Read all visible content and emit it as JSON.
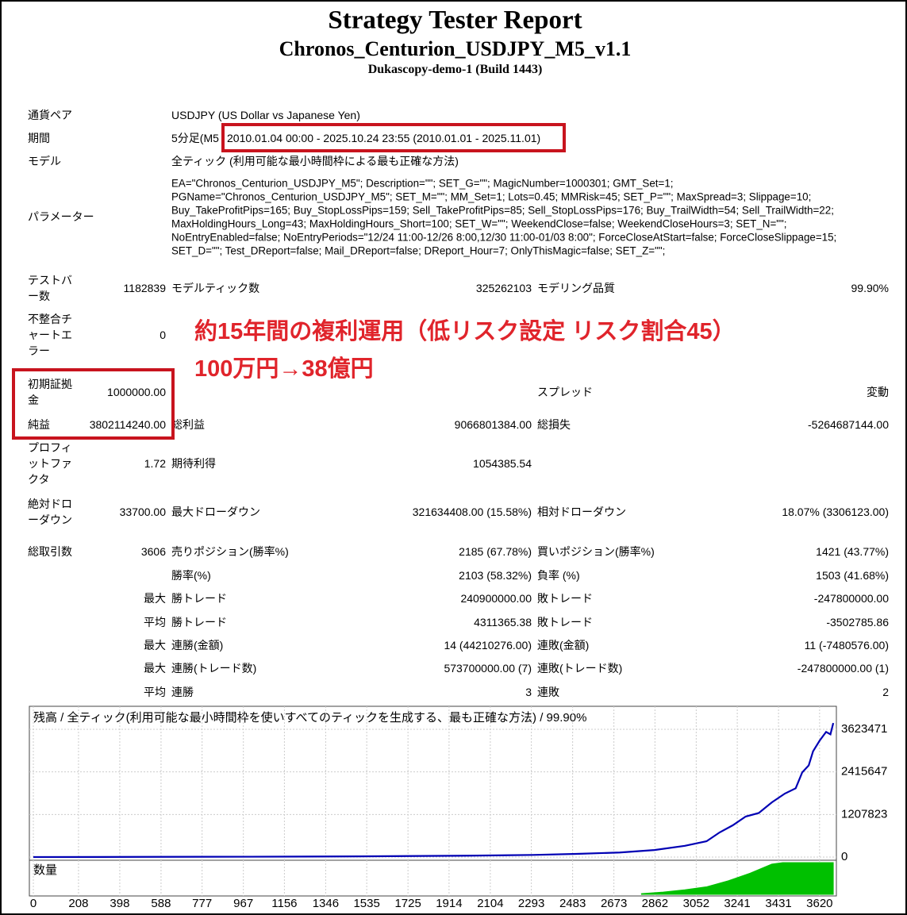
{
  "header": {
    "title": "Strategy Tester Report",
    "subtitle": "Chronos_Centurion_USDJPY_M5_v1.1",
    "server": "Dukascopy-demo-1 (Build 1443)"
  },
  "info": [
    {
      "label": "通貨ペア",
      "value": "USDJPY (US Dollar vs Japanese Yen)"
    },
    {
      "label": "期間",
      "value": "5分足(M5",
      "highlight": "2010.01.04 00:00 - 2025.10.24 23:55 (2010.01.01 - 2025.11.01)"
    },
    {
      "label": "モデル",
      "value": "全ティック (利用可能な最小時間枠による最も正確な方法)"
    },
    {
      "label": "パラメーター",
      "lines": [
        "EA=\"Chronos_Centurion_USDJPY_M5\"; Description=\"\"; SET_G=\"\"; MagicNumber=1000301; GMT_Set=1;",
        "PGName=\"Chronos_Centurion_USDJPY_M5\"; SET_M=\"\"; MM_Set=1; Lots=0.45; MMRisk=45; SET_P=\"\"; MaxSpread=3; Slippage=10;",
        "Buy_TakeProfitPips=165; Buy_StopLossPips=159; Sell_TakeProfitPips=85; Sell_StopLossPips=176; Buy_TrailWidth=54; Sell_TrailWidth=22;",
        "MaxHoldingHours_Long=43; MaxHoldingHours_Short=100; SET_W=\"\"; WeekendClose=false; WeekendCloseHours=3; SET_N=\"\";",
        "NoEntryEnabled=false; NoEntryPeriods=\"12/24 11:00-12/26 8:00,12/30 11:00-01/03 8:00\"; ForceCloseAtStart=false; ForceCloseSlippage=15;",
        "SET_D=\"\"; Test_DReport=false; Mail_DReport=false; DReport_Hour=7; OnlyThisMagic=false; SET_Z=\"\";"
      ]
    }
  ],
  "stats": [
    {
      "label": "テストバー数",
      "value": "1182839",
      "label2": "モデルティック数",
      "value2": "325262103",
      "label3": "モデリング品質",
      "value3": "99.90%"
    },
    {
      "label": "不整合チャートエラー",
      "value": "0"
    },
    {
      "label": "初期証拠金",
      "value": "1000000.00",
      "label3": "スプレッド",
      "value3": "変動"
    },
    {
      "label": "純益",
      "value": "3802114240.00",
      "label2": "総利益",
      "value2": "9066801384.00",
      "label3": "総損失",
      "value3": "-5264687144.00"
    },
    {
      "label": "プロフィットファクタ",
      "value": "1.72",
      "label2": "期待利得",
      "value2": "1054385.54"
    },
    {
      "label": "絶対ドローダウン",
      "value": "33700.00",
      "label2": "最大ドローダウン",
      "value2": "321634408.00 (15.58%)",
      "label3": "相対ドローダウン",
      "value3": "18.07% (3306123.00)"
    },
    {
      "label": "総取引数",
      "value": "3606",
      "label2": "売りポジション(勝率%)",
      "value2": "2185 (67.78%)",
      "label3": "買いポジション(勝率%)",
      "value3": "1421 (43.77%)"
    },
    {
      "label2": "勝率(%)",
      "value2": "2103 (58.32%)",
      "label3": "負率 (%)",
      "value3": "1503 (41.68%)"
    },
    {
      "value": "最大",
      "label2": "勝トレード",
      "value2": "240900000.00",
      "label3": "敗トレード",
      "value3": "-247800000.00"
    },
    {
      "value": "平均",
      "label2": "勝トレード",
      "value2": "4311365.38",
      "label3": "敗トレード",
      "value3": "-3502785.86"
    },
    {
      "value": "最大",
      "label2": "連勝(金額)",
      "value2": "14 (44210276.00)",
      "label3": "連敗(金額)",
      "value3": "11 (-7480576.00)"
    },
    {
      "value": "最大",
      "label2": "連勝(トレード数)",
      "value2": "573700000.00 (7)",
      "label3": "連敗(トレード数)",
      "value3": "-247800000.00 (1)"
    },
    {
      "value": "平均",
      "label2": "連勝",
      "value2": "3",
      "label3": "連敗",
      "value3": "2"
    }
  ],
  "annotation": [
    "約15年間の複利運用（低リスク設定 リスク割合45）",
    "100万円→38億円"
  ],
  "chart_data": [
    {
      "type": "line",
      "title": "残高 / 全ティック(利用可能な最小時間枠を使いすべてのティックを生成する、最も正確な方法) / 99.90%",
      "series": [
        {
          "color": "#0000b4",
          "x": [
            0,
            500,
            1000,
            1500,
            2000,
            2300,
            2500,
            2700,
            2860,
            3000,
            3100,
            3160,
            3220,
            3280,
            3340,
            3400,
            3460,
            3510,
            3540,
            3570,
            3590,
            3620,
            3650,
            3670,
            3683
          ],
          "values": [
            1000,
            5000,
            10000,
            20000,
            40000,
            60000,
            90000,
            130000,
            200000,
            320000,
            450000,
            700000,
            900000,
            1150000,
            1250000,
            1550000,
            1800000,
            1950000,
            2400000,
            2600000,
            3000000,
            3300000,
            3550000,
            3480000,
            3800000
          ]
        }
      ],
      "xlim": [
        0,
        3690
      ],
      "ylim": [
        0,
        4276000
      ],
      "xticks": [
        0,
        208,
        398,
        588,
        777,
        967,
        1156,
        1346,
        1535,
        1725,
        1914,
        2104,
        2293,
        2483,
        2673,
        2862,
        3052,
        3241,
        3431,
        3620
      ],
      "yticks": [
        0,
        1207823,
        2415647,
        3623471
      ],
      "grid": true
    },
    {
      "type": "area",
      "title": "数量",
      "color": "#00c000",
      "x": [
        2800,
        2900,
        3000,
        3100,
        3200,
        3300,
        3400,
        3450,
        3500,
        3683
      ],
      "values": [
        1,
        3,
        6,
        10,
        18,
        28,
        40,
        42,
        42,
        42
      ]
    }
  ]
}
